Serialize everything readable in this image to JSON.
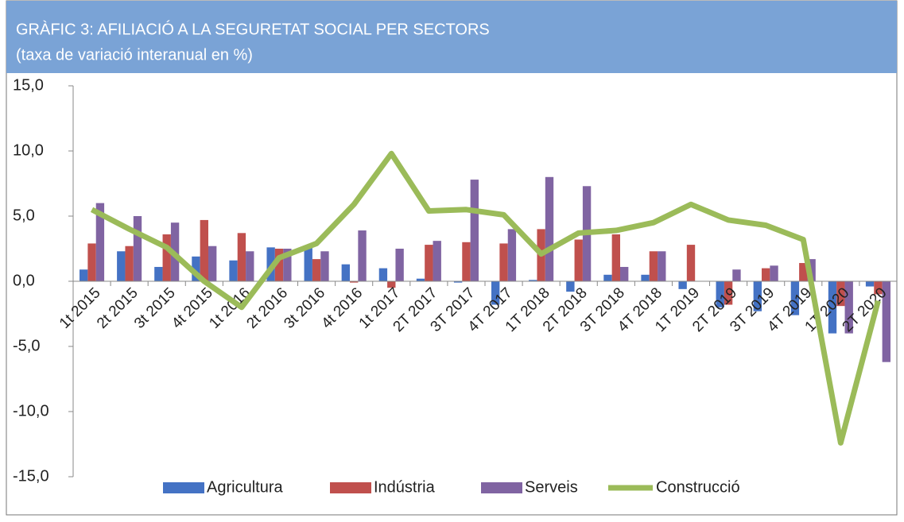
{
  "chart_data": {
    "type": "bar_line",
    "title": "GRÀFIC 3: AFILIACIÓ A LA SEGURETAT SOCIAL PER SECTORS",
    "subtitle": "(taxa de variació interanual en %)",
    "categories": [
      "1t 2015",
      "2t 2015",
      "3t 2015",
      "4t 2015",
      "1t 2016",
      "2t 2016",
      "3t 2016",
      "4t 2016",
      "1t 2017",
      "2T 2017",
      "3T 2017",
      "4T 2017",
      "1T 2018",
      "2T 2018",
      "3T 2018",
      "4T 2018",
      "1T 2019",
      "2T 2019",
      "3T 2019",
      "4T 2019",
      "1T 2020",
      "2T 2020"
    ],
    "series": [
      {
        "name": "Agricultura",
        "color": "#4472c4",
        "kind": "bar",
        "values": [
          0.9,
          2.3,
          1.1,
          1.9,
          1.6,
          2.6,
          2.6,
          1.3,
          1.0,
          0.2,
          -0.1,
          -1.8,
          0.1,
          -0.8,
          0.5,
          0.5,
          -0.6,
          -2.0,
          -2.3,
          -2.6,
          -4.0,
          -0.4
        ]
      },
      {
        "name": "Indústria",
        "color": "#c0504d",
        "kind": "bar",
        "values": [
          2.9,
          2.7,
          3.6,
          4.7,
          3.7,
          2.5,
          1.7,
          -0.1,
          -0.5,
          2.8,
          3.0,
          2.9,
          4.0,
          3.2,
          3.6,
          2.3,
          2.8,
          -1.8,
          1.0,
          1.4,
          -1.9,
          -1.0
        ]
      },
      {
        "name": "Serveis",
        "color": "#8064a2",
        "kind": "bar",
        "values": [
          6.0,
          5.0,
          4.5,
          2.7,
          2.3,
          2.5,
          2.3,
          3.9,
          2.5,
          3.1,
          7.8,
          4.0,
          8.0,
          7.3,
          1.1,
          2.3,
          0.0,
          0.9,
          1.2,
          1.7,
          -4.0,
          -6.2
        ]
      },
      {
        "name": "Construcció",
        "color": "#9bbb59",
        "kind": "line",
        "values": [
          5.5,
          4.0,
          2.6,
          0.0,
          -2.0,
          1.8,
          2.9,
          5.9,
          9.8,
          5.4,
          5.5,
          5.1,
          2.1,
          3.7,
          3.9,
          4.5,
          5.9,
          4.7,
          4.3,
          3.2,
          -12.4,
          -1.5
        ]
      }
    ],
    "ylim": [
      -15,
      15
    ],
    "yticks": [
      {
        "value": -15,
        "label": "-15,0"
      },
      {
        "value": -10,
        "label": "-10,0"
      },
      {
        "value": -5,
        "label": "-5,0"
      },
      {
        "value": 0,
        "label": "0,0"
      },
      {
        "value": 5,
        "label": "5,0"
      },
      {
        "value": 10,
        "label": "10,0"
      },
      {
        "value": 15,
        "label": "15,0"
      }
    ],
    "grid": false,
    "legend": "bottom"
  }
}
